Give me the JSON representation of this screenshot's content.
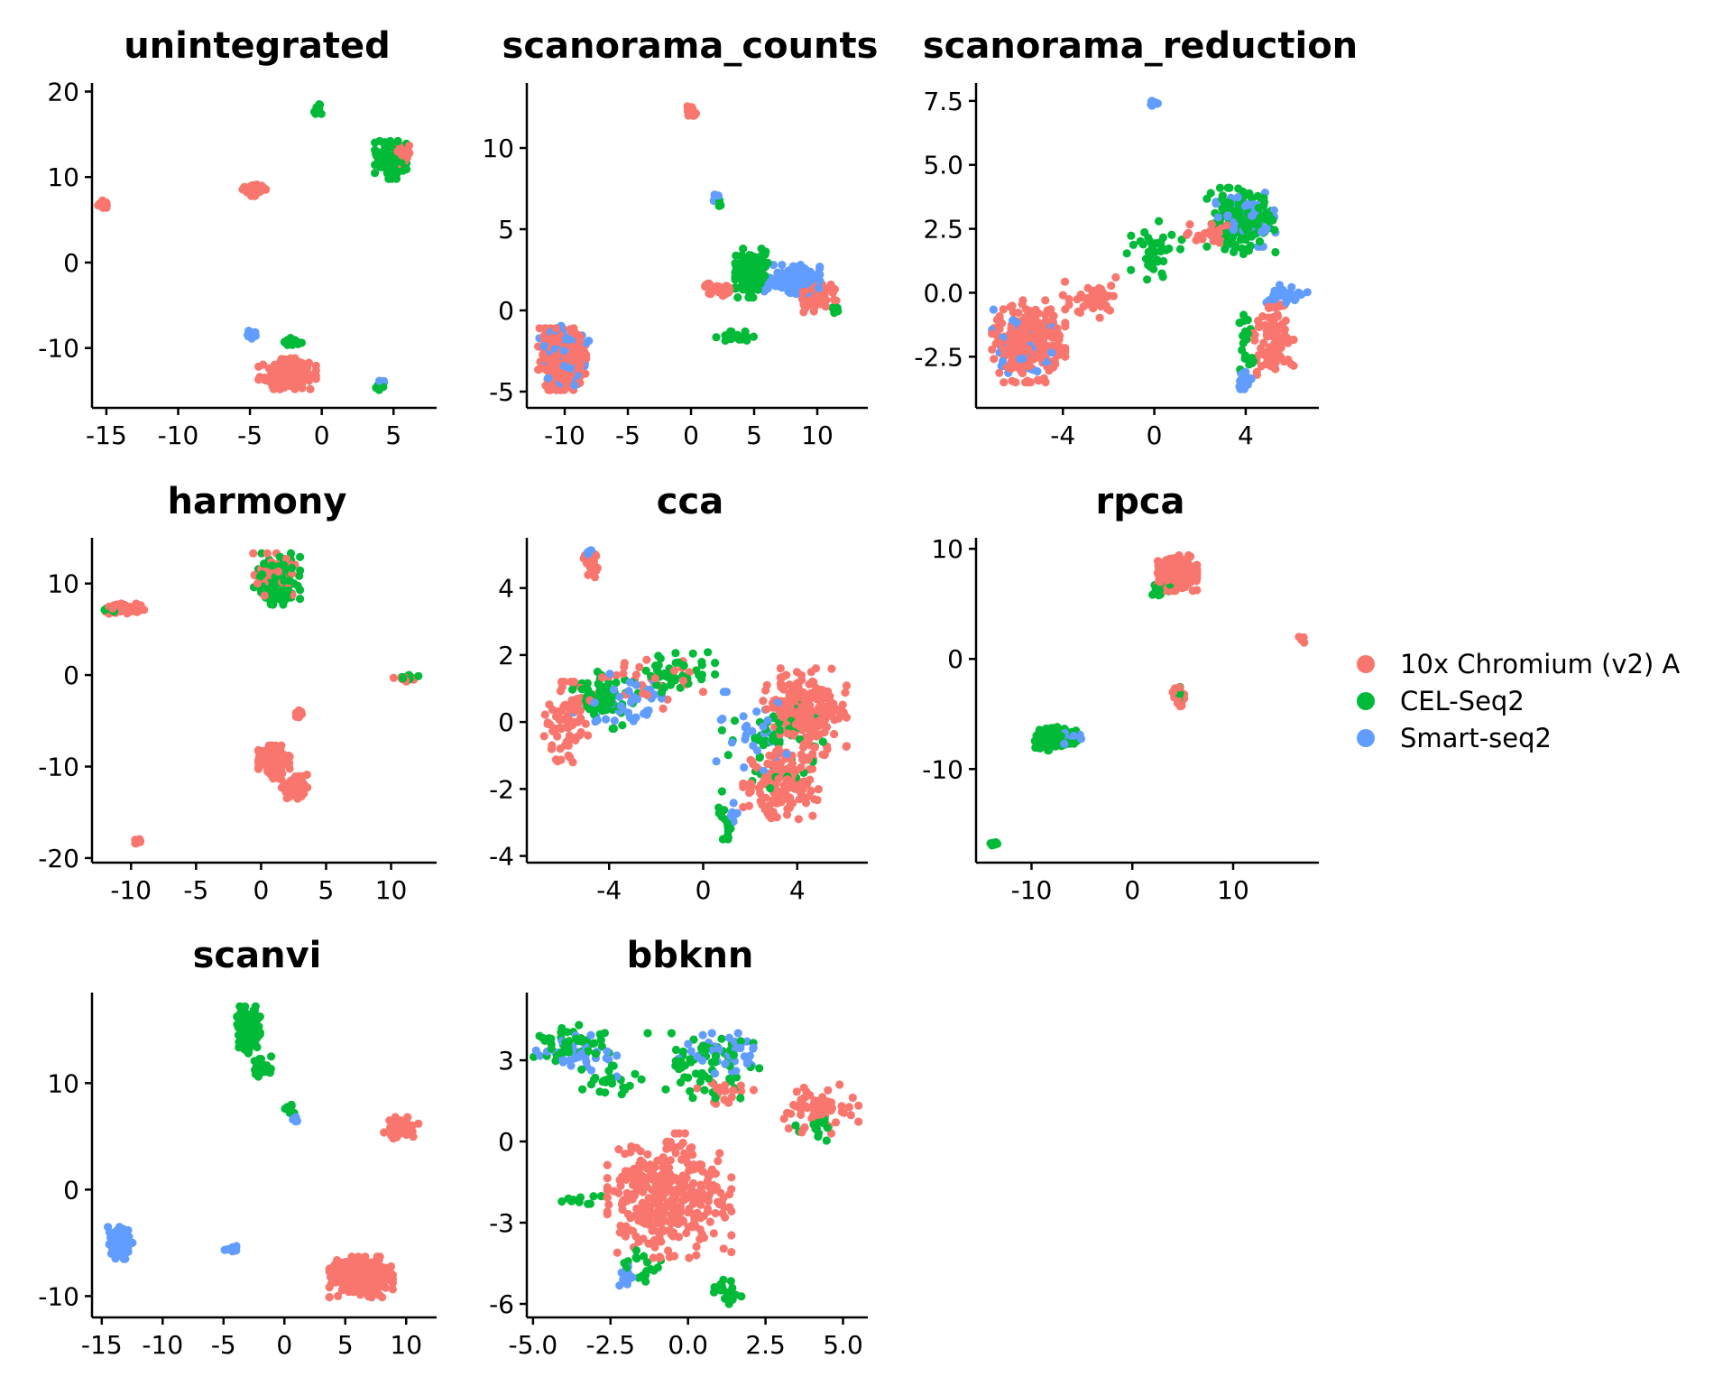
{
  "legend": {
    "items": [
      {
        "label": "10x Chromium (v2) A",
        "color": "#F8766D"
      },
      {
        "label": "CEL-Seq2",
        "color": "#00BA38"
      },
      {
        "label": "Smart-seq2",
        "color": "#619CFF"
      }
    ]
  },
  "chart_data": [
    {
      "type": "scatter",
      "title": "unintegrated",
      "xlim": [
        -16,
        8
      ],
      "ylim": [
        -17,
        21
      ],
      "xticks": [
        -15,
        -10,
        -5,
        0,
        5
      ],
      "xtick_labels": [
        "-15",
        "-10",
        "-5",
        "0",
        "5"
      ],
      "yticks": [
        -10,
        0,
        10,
        20
      ],
      "ytick_labels": [
        "-10",
        "0",
        "10",
        "20"
      ],
      "clusters": [
        {
          "series": 0,
          "cx": -15.2,
          "cy": 6.8,
          "rx": 0.4,
          "ry": 0.5,
          "n": 22
        },
        {
          "series": 0,
          "cx": -4.8,
          "cy": 8.5,
          "rx": 0.9,
          "ry": 0.7,
          "n": 55
        },
        {
          "series": 1,
          "cx": -0.3,
          "cy": 18.0,
          "rx": 0.3,
          "ry": 0.6,
          "n": 18
        },
        {
          "series": 1,
          "cx": 4.8,
          "cy": 12.0,
          "rx": 1.1,
          "ry": 2.2,
          "n": 130
        },
        {
          "series": 0,
          "cx": 5.2,
          "cy": 12.5,
          "rx": 0.9,
          "ry": 1.6,
          "n": 45
        },
        {
          "series": 2,
          "cx": -5.0,
          "cy": -8.5,
          "rx": 0.5,
          "ry": 0.6,
          "n": 18
        },
        {
          "series": 1,
          "cx": -2.1,
          "cy": -9.3,
          "rx": 0.7,
          "ry": 0.5,
          "n": 18
        },
        {
          "series": 0,
          "cx": -2.4,
          "cy": -13.0,
          "rx": 2.0,
          "ry": 1.8,
          "n": 230
        },
        {
          "series": 1,
          "cx": 4.0,
          "cy": -14.5,
          "rx": 0.3,
          "ry": 0.4,
          "n": 12
        },
        {
          "series": 2,
          "cx": 4.1,
          "cy": -14.0,
          "rx": 0.3,
          "ry": 0.3,
          "n": 10
        }
      ]
    },
    {
      "type": "scatter",
      "title": "scanorama_counts",
      "xlim": [
        -13,
        14
      ],
      "ylim": [
        -6,
        14
      ],
      "xticks": [
        -10,
        -5,
        0,
        5,
        10
      ],
      "xtick_labels": [
        "-10",
        "-5",
        "0",
        "5",
        "10"
      ],
      "yticks": [
        -5,
        0,
        5,
        10
      ],
      "ytick_labels": [
        "-5",
        "0",
        "5",
        "10"
      ],
      "clusters": [
        {
          "series": 0,
          "cx": 0.0,
          "cy": 12.4,
          "rx": 0.4,
          "ry": 0.4,
          "n": 18
        },
        {
          "series": 2,
          "cx": 2.0,
          "cy": 7.0,
          "rx": 0.3,
          "ry": 0.3,
          "n": 8
        },
        {
          "series": 1,
          "cx": 2.3,
          "cy": 6.6,
          "rx": 0.2,
          "ry": 0.3,
          "n": 6
        },
        {
          "series": 2,
          "cx": -10.0,
          "cy": -2.8,
          "rx": 2.0,
          "ry": 2.0,
          "n": 90
        },
        {
          "series": 0,
          "cx": -10.2,
          "cy": -3.0,
          "rx": 1.9,
          "ry": 1.9,
          "n": 300
        },
        {
          "series": 1,
          "cx": 4.8,
          "cy": 2.3,
          "rx": 1.3,
          "ry": 1.5,
          "n": 130
        },
        {
          "series": 0,
          "cx": 2.2,
          "cy": 1.3,
          "rx": 1.3,
          "ry": 0.4,
          "n": 35
        },
        {
          "series": 2,
          "cx": 8.0,
          "cy": 1.8,
          "rx": 2.2,
          "ry": 1.0,
          "n": 150
        },
        {
          "series": 0,
          "cx": 10.0,
          "cy": 0.8,
          "rx": 1.5,
          "ry": 1.0,
          "n": 60
        },
        {
          "series": 1,
          "cx": 3.5,
          "cy": -1.6,
          "rx": 1.8,
          "ry": 0.3,
          "n": 30
        },
        {
          "series": 1,
          "cx": 11.5,
          "cy": 0.0,
          "rx": 0.3,
          "ry": 0.5,
          "n": 8
        }
      ]
    },
    {
      "type": "scatter",
      "title": "scanorama_reduction",
      "xlim": [
        -7.8,
        7.2
      ],
      "ylim": [
        -4.5,
        8.2
      ],
      "xticks": [
        -4,
        0,
        4
      ],
      "xtick_labels": [
        "-4",
        "0",
        "4"
      ],
      "yticks": [
        -2.5,
        0,
        2.5,
        5,
        7.5
      ],
      "ytick_labels": [
        "-2.5",
        "0.0",
        "2.5",
        "5.0",
        "7.5"
      ],
      "clusters": [
        {
          "series": 2,
          "cx": 0.0,
          "cy": 7.4,
          "rx": 0.2,
          "ry": 0.15,
          "n": 10
        },
        {
          "series": 2,
          "cx": -5.8,
          "cy": -2.2,
          "rx": 1.3,
          "ry": 1.6,
          "n": 50
        },
        {
          "series": 0,
          "cx": -5.5,
          "cy": -1.9,
          "rx": 1.6,
          "ry": 1.6,
          "n": 300
        },
        {
          "series": 0,
          "cx": -2.5,
          "cy": -0.2,
          "rx": 1.5,
          "ry": 0.8,
          "n": 45
        },
        {
          "series": 1,
          "cx": 0.0,
          "cy": 1.6,
          "rx": 1.2,
          "ry": 1.2,
          "n": 40
        },
        {
          "series": 1,
          "cx": 3.8,
          "cy": 2.8,
          "rx": 1.5,
          "ry": 1.3,
          "n": 160
        },
        {
          "series": 2,
          "cx": 4.0,
          "cy": 3.0,
          "rx": 1.3,
          "ry": 1.2,
          "n": 60
        },
        {
          "series": 0,
          "cx": 2.4,
          "cy": 2.3,
          "rx": 1.0,
          "ry": 0.5,
          "n": 25
        },
        {
          "series": 2,
          "cx": 5.7,
          "cy": -0.1,
          "rx": 1.0,
          "ry": 0.4,
          "n": 35
        },
        {
          "series": 0,
          "cx": 5.2,
          "cy": -1.8,
          "rx": 0.9,
          "ry": 1.7,
          "n": 90
        },
        {
          "series": 1,
          "cx": 4.0,
          "cy": -1.8,
          "rx": 0.4,
          "ry": 1.2,
          "n": 20
        },
        {
          "series": 2,
          "cx": 4.0,
          "cy": -3.5,
          "rx": 0.4,
          "ry": 0.4,
          "n": 18
        }
      ]
    },
    {
      "type": "scatter",
      "title": "harmony",
      "xlim": [
        -13,
        13.5
      ],
      "ylim": [
        -20.5,
        15
      ],
      "xticks": [
        -10,
        -5,
        0,
        5,
        10
      ],
      "xtick_labels": [
        "-10",
        "-5",
        "0",
        "5",
        "10"
      ],
      "yticks": [
        -20,
        -10,
        0,
        10
      ],
      "ytick_labels": [
        "-20",
        "-10",
        "0",
        "10"
      ],
      "clusters": [
        {
          "series": 0,
          "cx": -10.5,
          "cy": 7.2,
          "rx": 1.6,
          "ry": 0.6,
          "n": 60
        },
        {
          "series": 1,
          "cx": -11.5,
          "cy": 7.0,
          "rx": 0.6,
          "ry": 0.4,
          "n": 8
        },
        {
          "series": 1,
          "cx": 1.2,
          "cy": 10.5,
          "rx": 1.8,
          "ry": 2.8,
          "n": 120
        },
        {
          "series": 0,
          "cx": 1.0,
          "cy": 10.8,
          "rx": 1.6,
          "ry": 2.5,
          "n": 60
        },
        {
          "series": 1,
          "cx": 11.3,
          "cy": -0.3,
          "rx": 0.8,
          "ry": 0.3,
          "n": 12
        },
        {
          "series": 0,
          "cx": 11.0,
          "cy": -0.4,
          "rx": 0.8,
          "ry": 0.3,
          "n": 12
        },
        {
          "series": 0,
          "cx": 3.0,
          "cy": -4.2,
          "rx": 0.3,
          "ry": 0.4,
          "n": 8
        },
        {
          "series": 0,
          "cx": 1.0,
          "cy": -9.5,
          "rx": 1.2,
          "ry": 1.8,
          "n": 150
        },
        {
          "series": 0,
          "cx": 2.6,
          "cy": -12.2,
          "rx": 1.1,
          "ry": 1.3,
          "n": 80
        },
        {
          "series": 0,
          "cx": -9.5,
          "cy": -18.2,
          "rx": 0.4,
          "ry": 0.3,
          "n": 8
        }
      ]
    },
    {
      "type": "scatter",
      "title": "cca",
      "xlim": [
        -7.5,
        7
      ],
      "ylim": [
        -4.2,
        5.5
      ],
      "xticks": [
        -4,
        0,
        4
      ],
      "xtick_labels": [
        "-4",
        "0",
        "4"
      ],
      "yticks": [
        -4,
        -2,
        0,
        2,
        4
      ],
      "ytick_labels": [
        "-4",
        "-2",
        "0",
        "2",
        "4"
      ],
      "clusters": [
        {
          "series": 0,
          "cx": -4.8,
          "cy": 4.7,
          "rx": 0.4,
          "ry": 0.4,
          "n": 30
        },
        {
          "series": 2,
          "cx": -4.9,
          "cy": 5.0,
          "rx": 0.2,
          "ry": 0.15,
          "n": 6
        },
        {
          "series": 0,
          "cx": -5.8,
          "cy": 0.0,
          "rx": 1.0,
          "ry": 1.2,
          "n": 80
        },
        {
          "series": 1,
          "cx": -4.2,
          "cy": 0.8,
          "rx": 1.5,
          "ry": 1.0,
          "n": 60
        },
        {
          "series": 2,
          "cx": -3.5,
          "cy": 0.6,
          "rx": 2.0,
          "ry": 1.0,
          "n": 45
        },
        {
          "series": 1,
          "cx": -1.0,
          "cy": 1.5,
          "rx": 1.5,
          "ry": 0.7,
          "n": 40
        },
        {
          "series": 0,
          "cx": -2.5,
          "cy": 1.2,
          "rx": 2.5,
          "ry": 0.8,
          "n": 30
        },
        {
          "series": 0,
          "cx": 4.3,
          "cy": 0.3,
          "rx": 1.8,
          "ry": 1.3,
          "n": 200
        },
        {
          "series": 0,
          "cx": 3.3,
          "cy": -1.8,
          "rx": 1.6,
          "ry": 1.1,
          "n": 150
        },
        {
          "series": 1,
          "cx": 3.0,
          "cy": -0.8,
          "rx": 2.2,
          "ry": 1.6,
          "n": 55
        },
        {
          "series": 2,
          "cx": 2.5,
          "cy": -0.5,
          "rx": 2.2,
          "ry": 1.4,
          "n": 30
        },
        {
          "series": 1,
          "cx": 1.0,
          "cy": -3.0,
          "rx": 0.4,
          "ry": 0.5,
          "n": 14
        },
        {
          "series": 2,
          "cx": 1.2,
          "cy": -2.7,
          "rx": 0.3,
          "ry": 0.4,
          "n": 8
        }
      ]
    },
    {
      "type": "scatter",
      "title": "rpca",
      "xlim": [
        -15.5,
        18.5
      ],
      "ylim": [
        -18.5,
        11
      ],
      "xticks": [
        -10,
        0,
        10
      ],
      "xtick_labels": [
        "-10",
        "0",
        "10"
      ],
      "yticks": [
        -10,
        0,
        10
      ],
      "ytick_labels": [
        "-10",
        "0",
        "10"
      ],
      "clusters": [
        {
          "series": 0,
          "cx": 4.2,
          "cy": 7.8,
          "rx": 2.2,
          "ry": 1.6,
          "n": 250
        },
        {
          "series": 1,
          "cx": 3.0,
          "cy": 6.2,
          "rx": 1.0,
          "ry": 0.7,
          "n": 20
        },
        {
          "series": 0,
          "cx": 16.8,
          "cy": 1.7,
          "rx": 0.3,
          "ry": 0.3,
          "n": 6
        },
        {
          "series": 0,
          "cx": 4.6,
          "cy": -3.3,
          "rx": 0.6,
          "ry": 1.0,
          "n": 35
        },
        {
          "series": 1,
          "cx": 4.6,
          "cy": -3.0,
          "rx": 0.4,
          "ry": 0.6,
          "n": 10
        },
        {
          "series": 1,
          "cx": -7.5,
          "cy": -7.2,
          "rx": 2.2,
          "ry": 1.1,
          "n": 120
        },
        {
          "series": 2,
          "cx": -6.5,
          "cy": -7.0,
          "rx": 1.5,
          "ry": 0.8,
          "n": 20
        },
        {
          "series": 1,
          "cx": -13.8,
          "cy": -16.8,
          "rx": 0.4,
          "ry": 0.3,
          "n": 8
        }
      ]
    },
    {
      "type": "scatter",
      "title": "scanvi",
      "xlim": [
        -15.8,
        12.5
      ],
      "ylim": [
        -12,
        18.5
      ],
      "xticks": [
        -15,
        -10,
        -5,
        0,
        5,
        10
      ],
      "xtick_labels": [
        "-15",
        "-10",
        "-5",
        "0",
        "5",
        "10"
      ],
      "yticks": [
        -10,
        0,
        10
      ],
      "ytick_labels": [
        "-10",
        "0",
        "10"
      ],
      "clusters": [
        {
          "series": 1,
          "cx": -3.0,
          "cy": 15.0,
          "rx": 1.0,
          "ry": 2.2,
          "n": 120
        },
        {
          "series": 1,
          "cx": -1.8,
          "cy": 11.5,
          "rx": 1.0,
          "ry": 1.0,
          "n": 25
        },
        {
          "series": 1,
          "cx": 0.3,
          "cy": 7.6,
          "rx": 0.5,
          "ry": 0.4,
          "n": 8
        },
        {
          "series": 2,
          "cx": 1.0,
          "cy": 6.5,
          "rx": 0.3,
          "ry": 0.3,
          "n": 5
        },
        {
          "series": 0,
          "cx": 9.5,
          "cy": 5.8,
          "rx": 1.5,
          "ry": 1.0,
          "n": 55
        },
        {
          "series": 2,
          "cx": -13.5,
          "cy": -5.0,
          "rx": 1.1,
          "ry": 1.5,
          "n": 80
        },
        {
          "series": 2,
          "cx": -4.3,
          "cy": -5.5,
          "rx": 0.6,
          "ry": 0.4,
          "n": 12
        },
        {
          "series": 0,
          "cx": 6.3,
          "cy": -8.2,
          "rx": 2.6,
          "ry": 1.9,
          "n": 320
        }
      ]
    },
    {
      "type": "scatter",
      "title": "bbknn",
      "xlim": [
        -5.2,
        5.8
      ],
      "ylim": [
        -6.5,
        5.5
      ],
      "xticks": [
        -5,
        -2.5,
        0,
        2.5,
        5
      ],
      "xtick_labels": [
        "-5.0",
        "-2.5",
        "0.0",
        "2.5",
        "5.0"
      ],
      "yticks": [
        -6,
        -3,
        0,
        3
      ],
      "ytick_labels": [
        "-6",
        "-3",
        "0",
        "3"
      ],
      "clusters": [
        {
          "series": 1,
          "cx": -3.8,
          "cy": 3.5,
          "rx": 1.4,
          "ry": 0.8,
          "n": 50
        },
        {
          "series": 2,
          "cx": -3.6,
          "cy": 3.2,
          "rx": 1.3,
          "ry": 0.8,
          "n": 35
        },
        {
          "series": 1,
          "cx": 0.5,
          "cy": 2.8,
          "rx": 1.8,
          "ry": 1.2,
          "n": 70
        },
        {
          "series": 2,
          "cx": 1.2,
          "cy": 3.2,
          "rx": 1.5,
          "ry": 0.8,
          "n": 40
        },
        {
          "series": 1,
          "cx": -2.5,
          "cy": 2.2,
          "rx": 1.0,
          "ry": 0.6,
          "n": 25
        },
        {
          "series": 0,
          "cx": 4.3,
          "cy": 1.2,
          "rx": 1.2,
          "ry": 0.9,
          "n": 70
        },
        {
          "series": 1,
          "cx": 4.0,
          "cy": 0.5,
          "rx": 0.8,
          "ry": 0.6,
          "n": 15
        },
        {
          "series": 0,
          "cx": 1.3,
          "cy": 1.8,
          "rx": 1.0,
          "ry": 0.5,
          "n": 25
        },
        {
          "series": 0,
          "cx": -0.6,
          "cy": -2.0,
          "rx": 2.0,
          "ry": 2.3,
          "n": 350
        },
        {
          "series": 1,
          "cx": -3.5,
          "cy": -2.2,
          "rx": 0.7,
          "ry": 0.2,
          "n": 12
        },
        {
          "series": 1,
          "cx": -1.5,
          "cy": -4.6,
          "rx": 0.8,
          "ry": 0.6,
          "n": 18
        },
        {
          "series": 2,
          "cx": -2.0,
          "cy": -5.0,
          "rx": 0.4,
          "ry": 0.4,
          "n": 14
        },
        {
          "series": 1,
          "cx": 1.3,
          "cy": -5.5,
          "rx": 0.5,
          "ry": 0.5,
          "n": 18
        }
      ]
    }
  ]
}
